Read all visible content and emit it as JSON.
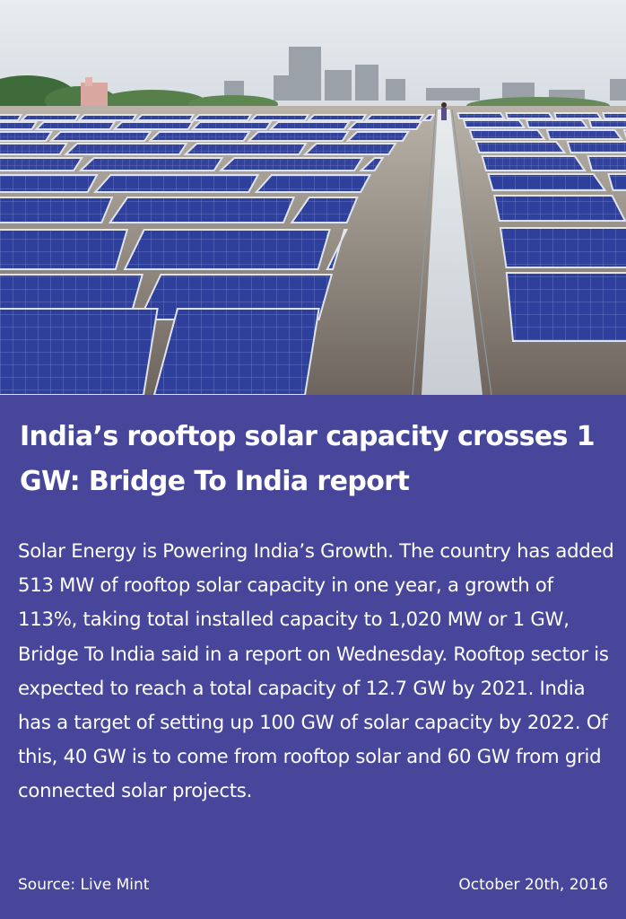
{
  "photo": {
    "subject": "rooftop-solar-panels-photo"
  },
  "card": {
    "headline": "India’s rooftop solar capacity crosses 1 GW: Bridge To India report",
    "body": "Solar Energy is Powering India’s Growth. The country has added 513 MW of rooftop solar capacity in one year, a growth of 113%, taking total installed capacity to 1,020 MW or 1 GW, Bridge To India said in a report on Wednesday. Rooftop sector is expected to reach a total capacity of 12.7 GW by 2021. India has a target of setting up 100 GW of solar capacity by 2022. Of this, 40 GW is to come from rooftop solar and 60 GW from grid connected solar projects.",
    "source": "Source: Live Mint",
    "date": "October 20th, 2016"
  },
  "colors": {
    "panel_background": "#47469a",
    "text": "#ffffff",
    "solar_panel_blue": "#2e3f9a"
  }
}
